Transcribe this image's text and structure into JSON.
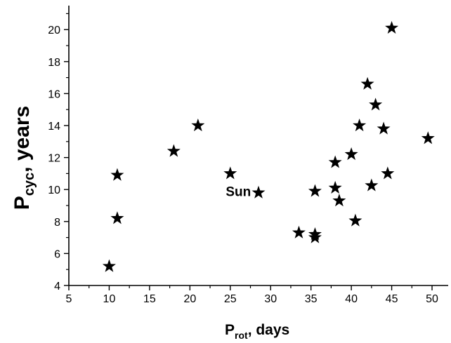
{
  "chart_data": {
    "type": "scatter",
    "marker": "star",
    "xlabel_main": "P",
    "xlabel_sub": "rot",
    "xlabel_rest": ", days",
    "ylabel_main": "P",
    "ylabel_sub": "cyc",
    "ylabel_rest": ", years",
    "xlim": [
      5,
      52
    ],
    "ylim": [
      4,
      21.5
    ],
    "xticks": [
      5,
      10,
      15,
      20,
      25,
      30,
      35,
      40,
      45,
      50
    ],
    "yticks": [
      4,
      6,
      8,
      10,
      12,
      14,
      16,
      18,
      20
    ],
    "grid": false,
    "annotation": {
      "text": "Sun",
      "x": 26.0,
      "y": 9.6
    },
    "points": [
      {
        "x": 10.0,
        "y": 5.2
      },
      {
        "x": 11.0,
        "y": 10.9
      },
      {
        "x": 11.0,
        "y": 8.2
      },
      {
        "x": 18.0,
        "y": 12.4
      },
      {
        "x": 21.0,
        "y": 14.0
      },
      {
        "x": 25.0,
        "y": 11.0
      },
      {
        "x": 28.5,
        "y": 9.8
      },
      {
        "x": 33.5,
        "y": 7.3
      },
      {
        "x": 35.5,
        "y": 7.2
      },
      {
        "x": 35.5,
        "y": 7.0
      },
      {
        "x": 35.5,
        "y": 9.9
      },
      {
        "x": 38.0,
        "y": 11.7
      },
      {
        "x": 38.0,
        "y": 10.1
      },
      {
        "x": 38.5,
        "y": 9.3
      },
      {
        "x": 40.0,
        "y": 12.2
      },
      {
        "x": 40.5,
        "y": 8.05
      },
      {
        "x": 41.0,
        "y": 14.0
      },
      {
        "x": 42.0,
        "y": 16.6
      },
      {
        "x": 42.5,
        "y": 10.25
      },
      {
        "x": 43.0,
        "y": 15.3
      },
      {
        "x": 44.0,
        "y": 13.8
      },
      {
        "x": 44.5,
        "y": 11.0
      },
      {
        "x": 45.0,
        "y": 20.1
      },
      {
        "x": 49.5,
        "y": 13.2
      }
    ]
  }
}
